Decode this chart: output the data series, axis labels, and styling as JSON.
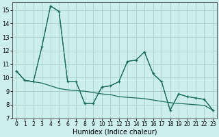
{
  "xlabel": "Humidex (Indice chaleur)",
  "background_color": "#cceeed",
  "grid_color": "#aad4d0",
  "line_color": "#1a6b5a",
  "xlim": [
    -0.5,
    23.5
  ],
  "ylim": [
    7,
    15.6
  ],
  "yticks": [
    7,
    8,
    9,
    10,
    11,
    12,
    13,
    14,
    15
  ],
  "xticks": [
    0,
    1,
    2,
    3,
    4,
    5,
    6,
    7,
    8,
    9,
    10,
    11,
    12,
    13,
    14,
    15,
    16,
    17,
    18,
    19,
    20,
    21,
    22,
    23
  ],
  "series1": [
    10.5,
    9.8,
    9.7,
    12.3,
    15.3,
    14.9,
    9.7,
    9.7,
    8.1,
    8.1,
    9.3,
    9.4,
    9.7,
    11.2,
    11.3,
    11.9,
    10.3,
    9.7,
    7.6,
    8.8,
    8.6,
    8.5,
    8.4,
    7.6
  ],
  "series2": [
    10.5,
    9.8,
    9.7,
    12.3,
    15.3,
    14.9,
    9.7,
    9.7,
    8.1,
    8.1,
    9.3,
    9.4,
    9.7,
    11.2,
    11.3,
    11.9,
    10.3,
    9.7,
    7.6,
    8.8,
    8.6,
    8.5,
    8.4,
    7.6
  ],
  "series3": [
    10.5,
    9.8,
    9.7,
    9.6,
    9.4,
    9.2,
    9.1,
    9.05,
    9.0,
    8.9,
    8.8,
    8.75,
    8.6,
    8.55,
    8.5,
    8.45,
    8.35,
    8.25,
    8.15,
    8.1,
    8.05,
    8.0,
    7.95,
    7.6
  ]
}
